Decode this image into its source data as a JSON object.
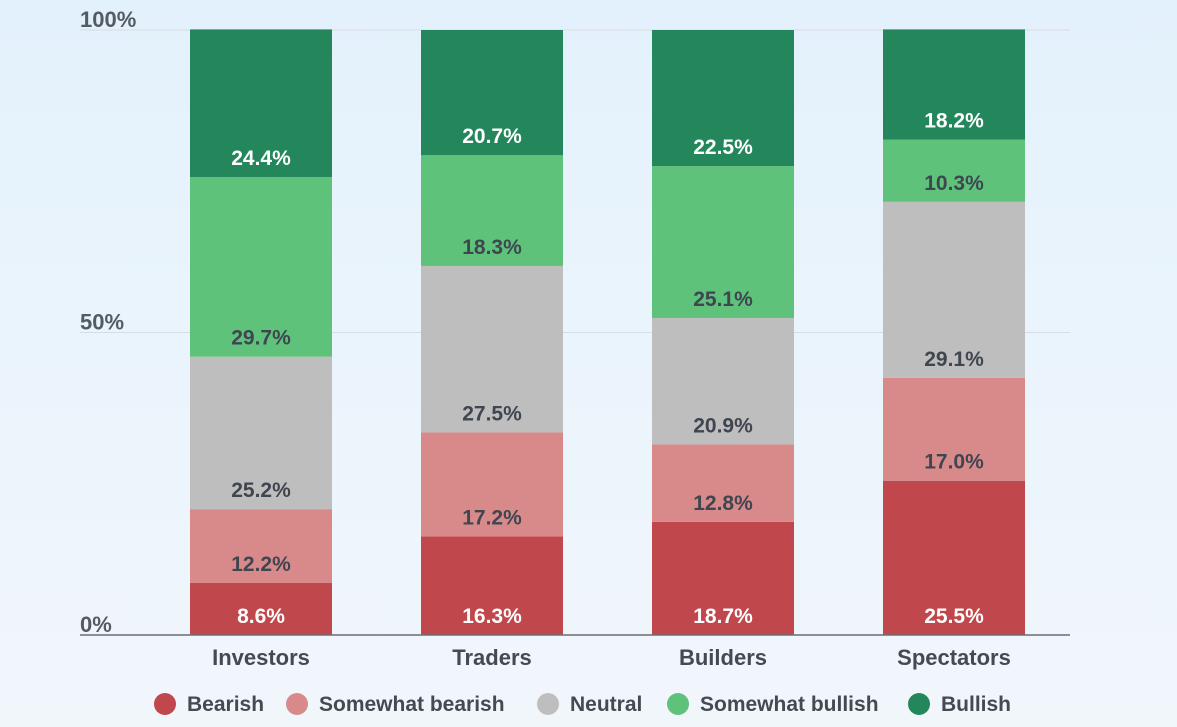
{
  "chart_data": {
    "type": "bar",
    "stacked": true,
    "categories": [
      "Investors",
      "Traders",
      "Builders",
      "Spectators"
    ],
    "series": [
      {
        "name": "Bearish",
        "values": [
          8.6,
          16.3,
          18.7,
          25.5
        ],
        "labels": [
          "8.6%",
          "16.3%",
          "18.7%",
          "25.5%"
        ],
        "color": "#c0474c",
        "label_color": "#ffffff"
      },
      {
        "name": "Somewhat bearish",
        "values": [
          12.2,
          17.2,
          12.8,
          17.0
        ],
        "labels": [
          "12.2%",
          "17.2%",
          "12.8%",
          "17.0%"
        ],
        "color": "#d88a8b",
        "label_color": "#3f4650"
      },
      {
        "name": "Neutral",
        "values": [
          25.2,
          27.5,
          20.9,
          29.1
        ],
        "labels": [
          "25.2%",
          "27.5%",
          "20.9%",
          "29.1%"
        ],
        "color": "#bebebe",
        "label_color": "#3f4650"
      },
      {
        "name": "Somewhat bullish",
        "values": [
          29.7,
          18.3,
          25.1,
          10.3
        ],
        "labels": [
          "29.7%",
          "18.3%",
          "25.1%",
          "10.3%"
        ],
        "color": "#5ec27b",
        "label_color": "#3f4650"
      },
      {
        "name": "Bullish",
        "values": [
          24.4,
          20.7,
          22.5,
          18.2
        ],
        "labels": [
          "24.4%",
          "20.7%",
          "22.5%",
          "18.2%"
        ],
        "color": "#24875c",
        "label_color": "#ffffff"
      }
    ],
    "ylim": [
      0,
      100
    ],
    "yticks": [
      0,
      50,
      100
    ],
    "ytick_labels": [
      "0%",
      "50%",
      "100%"
    ],
    "grid": true,
    "legend_position": "bottom",
    "title": "",
    "xlabel": "",
    "ylabel": ""
  }
}
